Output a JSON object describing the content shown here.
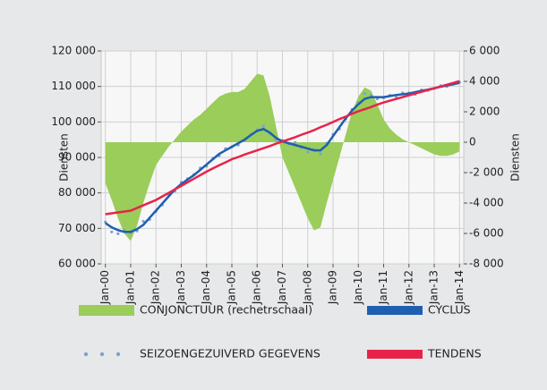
{
  "chart_data": {
    "type": "line",
    "x_label_left": "Diensten",
    "y2_label": "Diensten",
    "x": [
      0,
      3,
      6,
      9,
      12,
      15,
      18,
      21,
      24,
      27,
      30,
      33,
      36,
      39,
      42,
      45,
      48,
      51,
      54,
      57,
      60,
      63,
      66,
      69,
      72,
      75,
      78,
      81,
      84,
      87,
      90,
      93,
      96,
      99,
      102,
      105,
      108,
      111,
      114,
      117,
      120,
      123,
      126,
      129,
      132,
      135,
      138,
      141,
      144,
      147,
      150,
      153,
      156,
      159,
      162,
      165,
      168
    ],
    "xlim": [
      -2,
      170
    ],
    "xticks": [
      {
        "value": 0,
        "label": "Jan-00"
      },
      {
        "value": 12,
        "label": "Jan-01"
      },
      {
        "value": 24,
        "label": "Jan-02"
      },
      {
        "value": 36,
        "label": "Jan-03"
      },
      {
        "value": 48,
        "label": "Jan-04"
      },
      {
        "value": 60,
        "label": "Jan-05"
      },
      {
        "value": 72,
        "label": "Jan-06"
      },
      {
        "value": 84,
        "label": "Jan-07"
      },
      {
        "value": 96,
        "label": "Jan-08"
      },
      {
        "value": 108,
        "label": "Jan-09"
      },
      {
        "value": 120,
        "label": "Jan-10"
      },
      {
        "value": 132,
        "label": "Jan-11"
      },
      {
        "value": 144,
        "label": "Jan-12"
      },
      {
        "value": 156,
        "label": "Jan-13"
      },
      {
        "value": 168,
        "label": "Jan-14"
      }
    ],
    "ylim": [
      60000,
      120000
    ],
    "yticks": [
      {
        "value": 60000,
        "label": "60 000"
      },
      {
        "value": 70000,
        "label": "70 000"
      },
      {
        "value": 80000,
        "label": "80 000"
      },
      {
        "value": 90000,
        "label": "90 000"
      },
      {
        "value": 100000,
        "label": "100 000"
      },
      {
        "value": 110000,
        "label": "110 000"
      },
      {
        "value": 120000,
        "label": "120 000"
      }
    ],
    "y2lim": [
      -8000,
      6000
    ],
    "y2ticks": [
      {
        "value": -8000,
        "label": "-8 000"
      },
      {
        "value": -6000,
        "label": "-6 000"
      },
      {
        "value": -4000,
        "label": "-4 000"
      },
      {
        "value": -2000,
        "label": "-2 000"
      },
      0,
      {
        "value": 2000,
        "label": "2 000"
      },
      {
        "value": 4000,
        "label": "4 000"
      },
      {
        "value": 6000,
        "label": "6 000"
      }
    ],
    "grid": true,
    "series": [
      {
        "name": "CONJONCTUUR (rechetrschaal)",
        "type": "area",
        "axis": "y2",
        "color": "#9acd5a",
        "values": [
          -2700,
          -3800,
          -5000,
          -6000,
          -6500,
          -5500,
          -4000,
          -2700,
          -1500,
          -900,
          -300,
          200,
          700,
          1100,
          1500,
          1800,
          2200,
          2600,
          3000,
          3200,
          3300,
          3300,
          3500,
          4000,
          4500,
          4400,
          3000,
          1000,
          -1000,
          -2000,
          -3000,
          -4000,
          -5000,
          -5800,
          -5600,
          -4000,
          -2500,
          -1000,
          500,
          2000,
          3000,
          3600,
          3400,
          2500,
          1500,
          900,
          500,
          200,
          0,
          -200,
          -400,
          -600,
          -800,
          -900,
          -900,
          -800,
          -600
        ]
      },
      {
        "name": "SEIZOENGEZUIVERD GEGEVENS",
        "type": "scatter",
        "color": "#7f9fd0",
        "values": [
          71800,
          69000,
          68500,
          69500,
          68800,
          69300,
          72000,
          72500,
          74800,
          76600,
          79500,
          80500,
          83000,
          84000,
          85200,
          87000,
          87500,
          89800,
          90500,
          92500,
          93000,
          93500,
          94800,
          96500,
          97800,
          98800,
          96800,
          95000,
          94800,
          93800,
          94200,
          92800,
          91500,
          92200,
          91000,
          94000,
          96500,
          98000,
          100800,
          103500,
          105500,
          108000,
          107500,
          106500,
          106800,
          107500,
          107000,
          108200,
          108200,
          107800,
          109000,
          108900,
          109400,
          110200,
          110000,
          110800,
          111200
        ]
      },
      {
        "name": "CYCLUS",
        "type": "line",
        "color": "#1f5fb0",
        "values": [
          71500,
          70300,
          69500,
          69000,
          69000,
          69800,
          71000,
          73000,
          75000,
          77000,
          79000,
          81000,
          82500,
          83800,
          85000,
          86500,
          88000,
          89500,
          91000,
          92000,
          93000,
          94000,
          95000,
          96300,
          97500,
          98000,
          97000,
          95500,
          94500,
          94000,
          93500,
          93000,
          92500,
          92000,
          92000,
          93500,
          96000,
          98500,
          101000,
          103200,
          105000,
          106500,
          107000,
          107000,
          107000,
          107300,
          107600,
          107800,
          108000,
          108400,
          108800,
          109100,
          109500,
          109900,
          110300,
          110600,
          111000
        ]
      },
      {
        "name": "TENDENS",
        "type": "line",
        "color": "#e8234a",
        "values": [
          74000,
          74250,
          74500,
          74750,
          75000,
          75750,
          76500,
          77250,
          78000,
          79000,
          80000,
          81000,
          82000,
          83000,
          84000,
          85000,
          86000,
          86900,
          87800,
          88600,
          89500,
          90100,
          90800,
          91400,
          92000,
          92600,
          93200,
          93900,
          94500,
          95100,
          95700,
          96400,
          97000,
          97700,
          98500,
          99200,
          100000,
          100800,
          101500,
          102300,
          103000,
          103600,
          104200,
          104900,
          105500,
          106000,
          106500,
          107000,
          107500,
          108000,
          108500,
          109000,
          109500,
          110000,
          110500,
          111000,
          111500
        ]
      }
    ]
  }
}
